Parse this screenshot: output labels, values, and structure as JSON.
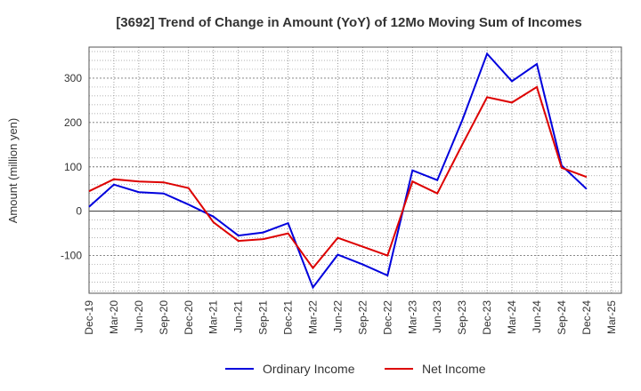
{
  "chart_data": {
    "type": "line",
    "title": "[3692]  Trend of Change in Amount (YoY) of 12Mo Moving Sum of Incomes",
    "xlabel": "",
    "ylabel": "Amount (million yen)",
    "categories": [
      "Dec-19",
      "Mar-20",
      "Jun-20",
      "Sep-20",
      "Dec-20",
      "Mar-21",
      "Jun-21",
      "Sep-21",
      "Dec-21",
      "Mar-22",
      "Jun-22",
      "Sep-22",
      "Dec-22",
      "Mar-23",
      "Jun-23",
      "Sep-23",
      "Dec-23",
      "Mar-24",
      "Jun-24",
      "Sep-24",
      "Dec-24",
      "Mar-25"
    ],
    "yticks": [
      -100,
      0,
      100,
      200,
      300
    ],
    "ylim": [
      -185,
      370
    ],
    "grid": true,
    "legend_position": "bottom",
    "series": [
      {
        "name": "Ordinary Income",
        "color": "#0000dd",
        "values": [
          10,
          60,
          43,
          40,
          15,
          -12,
          -55,
          -48,
          -27,
          -172,
          -98,
          -120,
          -145,
          92,
          70,
          205,
          355,
          293,
          332,
          103,
          50,
          null
        ]
      },
      {
        "name": "Net Income",
        "color": "#dd0000",
        "values": [
          45,
          72,
          67,
          65,
          52,
          -25,
          -67,
          -63,
          -50,
          -128,
          -60,
          -80,
          -100,
          67,
          40,
          150,
          257,
          245,
          280,
          98,
          77,
          null
        ]
      }
    ]
  }
}
